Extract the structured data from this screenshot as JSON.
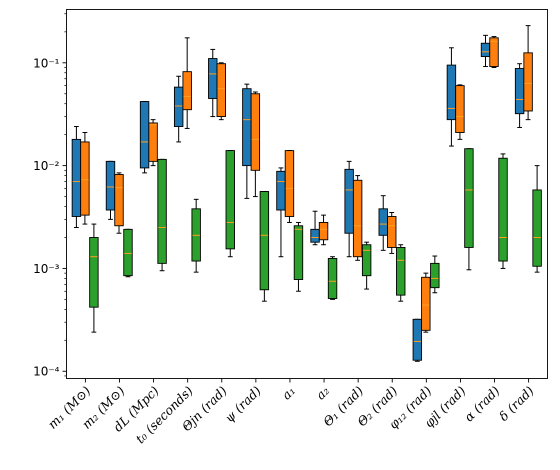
{
  "chart_data": {
    "type": "box",
    "title": "",
    "xlabel": "",
    "ylabel": "",
    "yscale": "log",
    "ylim": [
      8.5e-05,
      0.33
    ],
    "yticks": [
      {
        "value": 0.0001,
        "label": "10⁻⁴"
      },
      {
        "value": 0.001,
        "label": "10⁻³"
      },
      {
        "value": 0.01,
        "label": "10⁻²"
      },
      {
        "value": 0.1,
        "label": "10⁻¹"
      }
    ],
    "grid": false,
    "legend": "none",
    "categories": [
      "m₁ (M⊙)",
      "m₂ (M⊙)",
      "dL (Mpc)",
      "t₀ (seconds)",
      "Θjn (rad)",
      "ψ (rad)",
      "a₁",
      "a₂",
      "Θ₁ (rad)",
      "Θ₂ (rad)",
      "φ₁₂ (rad)",
      "φjl (rad)",
      "α (rad)",
      "δ (rad)"
    ],
    "series": [
      {
        "color": "#1f77b4",
        "boxes": [
          {
            "min": 0.0025,
            "q1": 0.0032,
            "median": 0.007,
            "q3": 0.018,
            "max": 0.024
          },
          {
            "min": 0.003,
            "q1": 0.0037,
            "median": 0.0062,
            "q3": 0.011,
            "max": 0.011
          },
          {
            "min": 0.0085,
            "q1": 0.0095,
            "median": 0.017,
            "q3": 0.042,
            "max": 0.042
          },
          {
            "min": 0.017,
            "q1": 0.024,
            "median": 0.038,
            "q3": 0.058,
            "max": 0.074
          },
          {
            "min": 0.03,
            "q1": 0.045,
            "median": 0.078,
            "q3": 0.11,
            "max": 0.135
          },
          {
            "min": 0.0048,
            "q1": 0.01,
            "median": 0.028,
            "q3": 0.056,
            "max": 0.062
          },
          {
            "min": 0.0013,
            "q1": 0.0037,
            "median": 0.007,
            "q3": 0.0088,
            "max": 0.0095
          },
          {
            "min": 0.0017,
            "q1": 0.0018,
            "median": 0.002,
            "q3": 0.0024,
            "max": 0.0036
          },
          {
            "min": 0.0013,
            "q1": 0.0022,
            "median": 0.0058,
            "q3": 0.0092,
            "max": 0.011
          },
          {
            "min": 0.0015,
            "q1": 0.0021,
            "median": 0.0027,
            "q3": 0.0038,
            "max": 0.0051
          },
          {
            "min": 0.000125,
            "q1": 0.000128,
            "median": 0.000195,
            "q3": 0.00032,
            "max": 0.00032
          },
          {
            "min": 0.0155,
            "q1": 0.028,
            "median": 0.036,
            "q3": 0.095,
            "max": 0.14
          },
          {
            "min": 0.092,
            "q1": 0.115,
            "median": 0.128,
            "q3": 0.155,
            "max": 0.185
          },
          {
            "min": 0.0235,
            "q1": 0.032,
            "median": 0.044,
            "q3": 0.088,
            "max": 0.098
          }
        ]
      },
      {
        "color": "#ff7f0e",
        "boxes": [
          {
            "min": 0.0027,
            "q1": 0.0033,
            "median": 0.0073,
            "q3": 0.017,
            "max": 0.021
          },
          {
            "min": 0.0022,
            "q1": 0.0026,
            "median": 0.0061,
            "q3": 0.0082,
            "max": 0.0085
          },
          {
            "min": 0.01,
            "q1": 0.011,
            "median": 0.025,
            "q3": 0.026,
            "max": 0.028
          },
          {
            "min": 0.023,
            "q1": 0.035,
            "median": 0.047,
            "q3": 0.082,
            "max": 0.175
          },
          {
            "min": 0.028,
            "q1": 0.03,
            "median": 0.056,
            "q3": 0.098,
            "max": 0.1
          },
          {
            "min": 0.005,
            "q1": 0.009,
            "median": 0.018,
            "q3": 0.05,
            "max": 0.052
          },
          {
            "min": 0.0028,
            "q1": 0.0032,
            "median": 0.006,
            "q3": 0.014,
            "max": 0.014
          },
          {
            "min": 0.0017,
            "q1": 0.0019,
            "median": 0.0024,
            "q3": 0.0028,
            "max": 0.0033
          },
          {
            "min": 0.0012,
            "q1": 0.0013,
            "median": 0.0026,
            "q3": 0.0072,
            "max": 0.008
          },
          {
            "min": 0.0014,
            "q1": 0.0016,
            "median": 0.0026,
            "q3": 0.0032,
            "max": 0.0035
          },
          {
            "min": 0.00024,
            "q1": 0.00025,
            "median": 0.00044,
            "q3": 0.00082,
            "max": 0.0009
          },
          {
            "min": 0.018,
            "q1": 0.021,
            "median": 0.03,
            "q3": 0.06,
            "max": 0.061
          },
          {
            "min": 0.09,
            "q1": 0.092,
            "median": 0.162,
            "q3": 0.175,
            "max": 0.18
          },
          {
            "min": 0.028,
            "q1": 0.034,
            "median": 0.063,
            "q3": 0.125,
            "max": 0.23
          }
        ]
      },
      {
        "color": "#2ca02c",
        "boxes": [
          {
            "min": 0.00024,
            "q1": 0.00042,
            "median": 0.0013,
            "q3": 0.002,
            "max": 0.0027
          },
          {
            "min": 0.00083,
            "q1": 0.00085,
            "median": 0.0014,
            "q3": 0.0024,
            "max": 0.0024
          },
          {
            "min": 0.00095,
            "q1": 0.00112,
            "median": 0.0025,
            "q3": 0.0115,
            "max": 0.0115
          },
          {
            "min": 0.00092,
            "q1": 0.00118,
            "median": 0.0021,
            "q3": 0.0038,
            "max": 0.0047
          },
          {
            "min": 0.0013,
            "q1": 0.00155,
            "median": 0.0028,
            "q3": 0.014,
            "max": 0.014
          },
          {
            "min": 0.00048,
            "q1": 0.00062,
            "median": 0.0021,
            "q3": 0.0056,
            "max": 0.0056
          },
          {
            "min": 0.0006,
            "q1": 0.00078,
            "median": 0.0024,
            "q3": 0.0026,
            "max": 0.0028
          },
          {
            "min": 0.0005,
            "q1": 0.00051,
            "median": 0.00075,
            "q3": 0.00125,
            "max": 0.0013
          },
          {
            "min": 0.00063,
            "q1": 0.00085,
            "median": 0.0015,
            "q3": 0.0017,
            "max": 0.0018
          },
          {
            "min": 0.00048,
            "q1": 0.00055,
            "median": 0.0012,
            "q3": 0.0016,
            "max": 0.0017
          },
          {
            "min": 0.00058,
            "q1": 0.00065,
            "median": 0.0008,
            "q3": 0.00112,
            "max": 0.00132
          },
          {
            "min": 0.00097,
            "q1": 0.0016,
            "median": 0.0058,
            "q3": 0.0146,
            "max": 0.0146
          },
          {
            "min": 0.001,
            "q1": 0.00118,
            "median": 0.002,
            "q3": 0.0118,
            "max": 0.013
          },
          {
            "min": 0.00092,
            "q1": 0.00105,
            "median": 0.002,
            "q3": 0.0058,
            "max": 0.01
          }
        ]
      }
    ],
    "median_color": "#ff9f1c"
  }
}
